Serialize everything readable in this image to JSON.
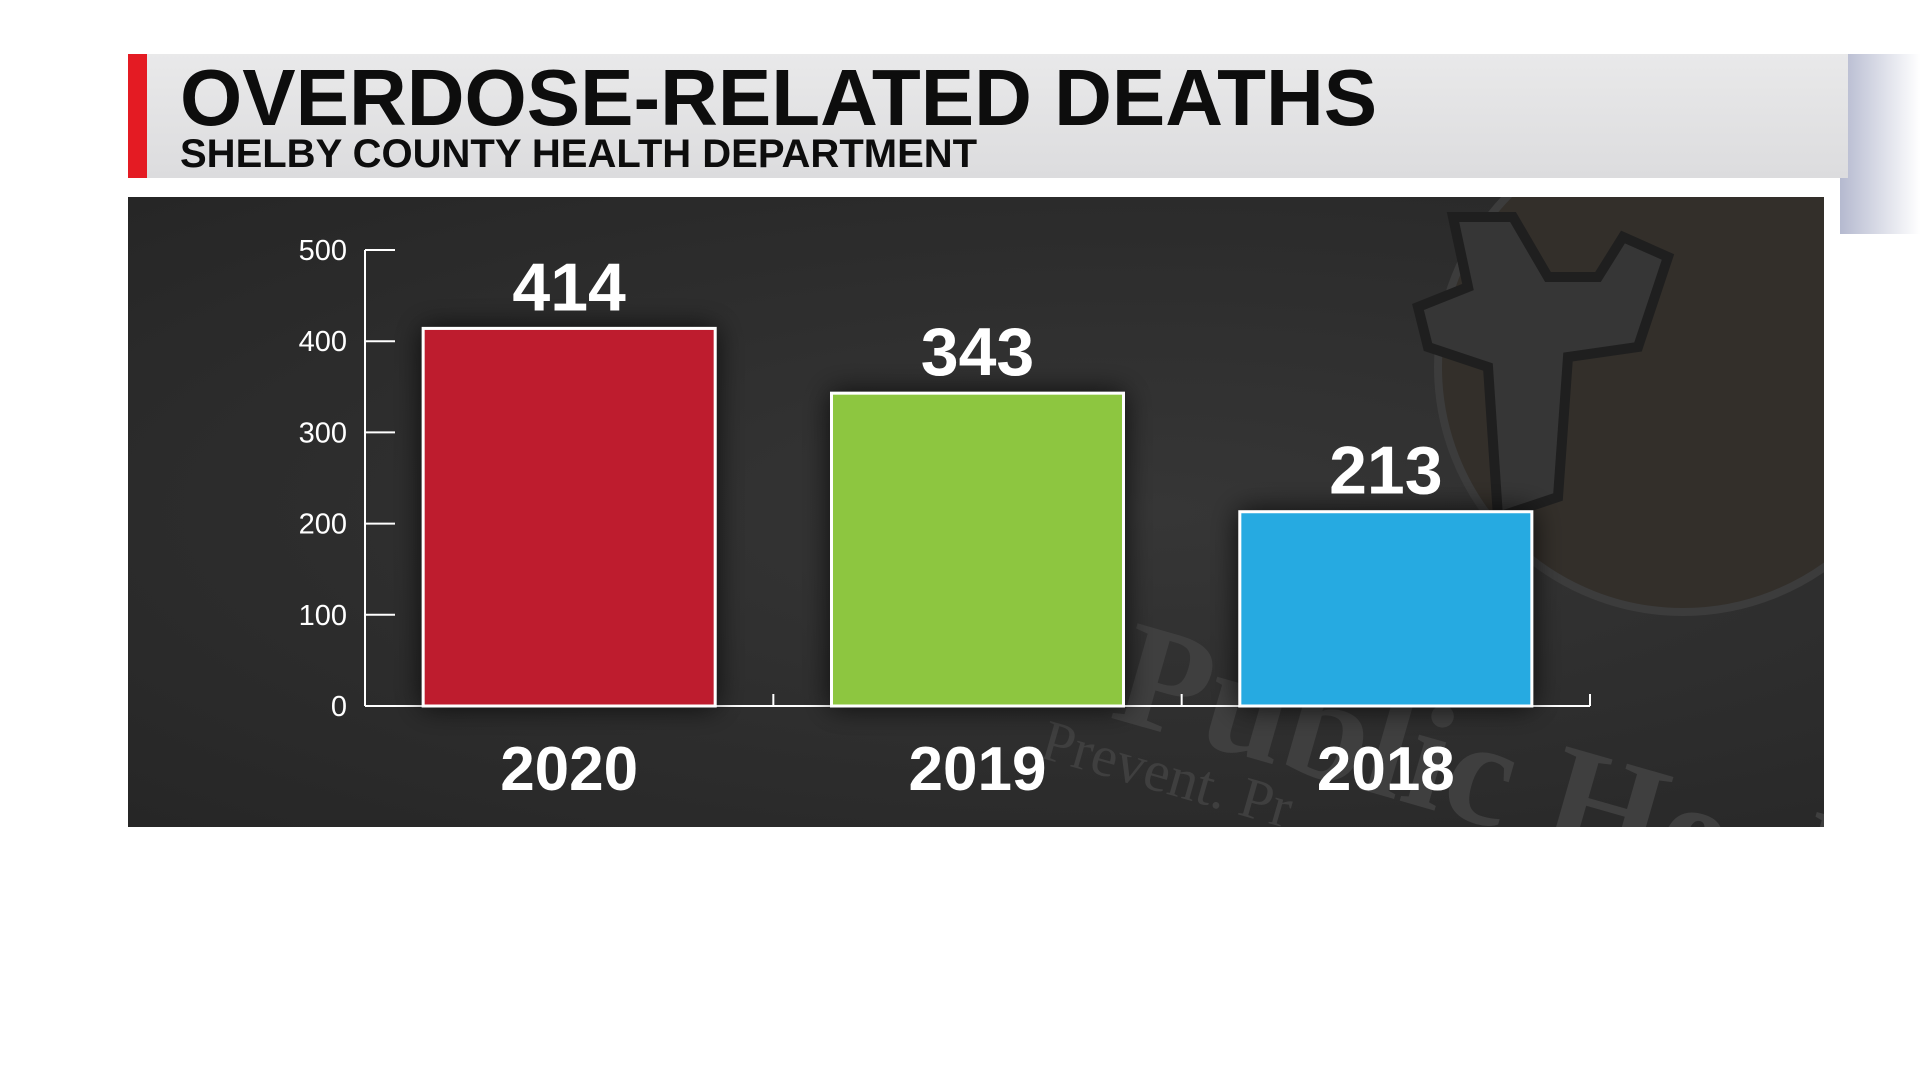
{
  "header": {
    "title": "OVERDOSE-RELATED DEATHS",
    "subtitle": "SHELBY COUNTY HEALTH DEPARTMENT"
  },
  "watermark": {
    "text_main": "Public Health",
    "text_tagline": "Prevent. Pr"
  },
  "colors": {
    "accent_red": "#e41b23",
    "bar_2020": "#be1e2d",
    "bar_2019": "#8dc63f",
    "bar_2018": "#27aae1",
    "panel_bg": "#2b2b2b"
  },
  "chart_data": {
    "type": "bar",
    "categories": [
      "2020",
      "2019",
      "2018"
    ],
    "values": [
      414,
      343,
      213
    ],
    "data_labels": [
      "414",
      "343",
      "213"
    ],
    "title": "OVERDOSE-RELATED DEATHS",
    "subtitle": "SHELBY COUNTY HEALTH DEPARTMENT",
    "xlabel": "",
    "ylabel": "",
    "ylim": [
      0,
      500
    ],
    "yticks": [
      "0",
      "100",
      "200",
      "300",
      "400",
      "500"
    ],
    "grid": false,
    "legend": "none"
  }
}
